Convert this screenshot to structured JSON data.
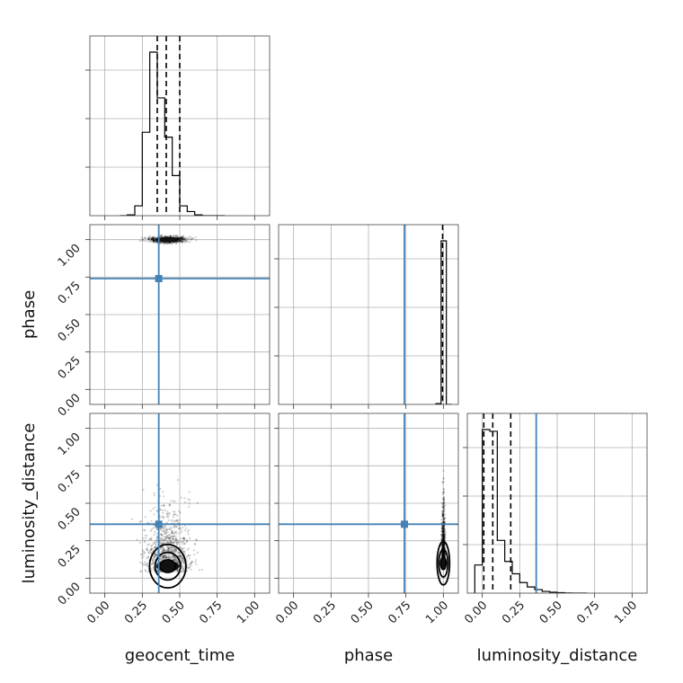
{
  "chart_data": {
    "type": "corner",
    "parameters": [
      "geocent_time",
      "phase",
      "luminosity_distance"
    ],
    "axis_range": [
      -0.1,
      1.1
    ],
    "tick_values": [
      0.0,
      0.25,
      0.5,
      0.75,
      1.0
    ],
    "tick_labels": [
      "0.00",
      "0.25",
      "0.50",
      "0.75",
      "1.00"
    ],
    "grid": true,
    "colors": {
      "truth": "#4682b4",
      "histogram": "#000000",
      "points": "#000000"
    },
    "truths": {
      "geocent_time": 0.36,
      "phase": 0.74,
      "luminosity_distance": 0.36
    },
    "histograms": [
      {
        "parameter": "geocent_time",
        "bin_edges": [
          0.1,
          0.15,
          0.2,
          0.25,
          0.3,
          0.35,
          0.4,
          0.45,
          0.5,
          0.55,
          0.6,
          0.65,
          0.7,
          0.75,
          0.8
        ],
        "counts": [
          0,
          5,
          60,
          510,
          1000,
          720,
          480,
          245,
          60,
          25,
          5,
          0,
          0,
          0
        ],
        "quantiles": [
          0.35,
          0.41,
          0.5
        ]
      },
      {
        "parameter": "phase",
        "bin_edges": [
          0.95,
          0.985,
          1.02,
          1.055
        ],
        "counts": [
          5,
          1000,
          0
        ],
        "quantiles": [
          0.995
        ]
      },
      {
        "parameter": "luminosity_distance",
        "bin_edges": [
          -0.05,
          0.0,
          0.05,
          0.1,
          0.15,
          0.2,
          0.25,
          0.3,
          0.35,
          0.4,
          0.45,
          0.5,
          0.55,
          0.6,
          0.65,
          0.7
        ],
        "counts": [
          160,
          930,
          920,
          300,
          180,
          110,
          60,
          35,
          20,
          10,
          5,
          3,
          1,
          0,
          0
        ],
        "quantiles": [
          0.01,
          0.07,
          0.19
        ]
      }
    ],
    "scatter_2d": [
      {
        "x": "geocent_time",
        "y": "phase",
        "center": [
          0.42,
          1.0
        ],
        "spread": [
          0.06,
          0.01
        ]
      },
      {
        "x": "geocent_time",
        "y": "luminosity_distance",
        "center": [
          0.42,
          0.08
        ],
        "spread": [
          0.08,
          0.12
        ]
      },
      {
        "x": "phase",
        "y": "luminosity_distance",
        "center": [
          1.0,
          0.1
        ],
        "spread": [
          0.005,
          0.12
        ]
      }
    ]
  }
}
